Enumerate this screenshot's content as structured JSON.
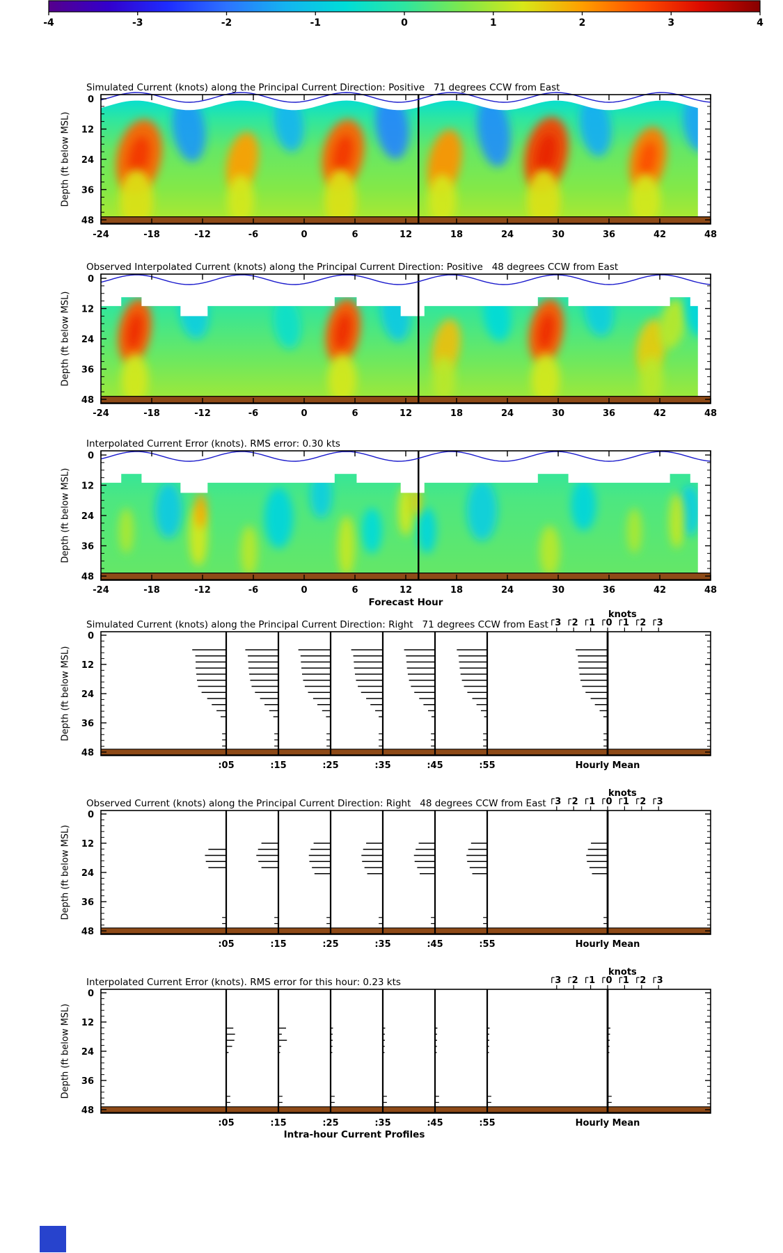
{
  "colorbar": {
    "values": [
      -4,
      -3,
      -2,
      -1,
      0,
      1,
      2,
      3,
      4
    ],
    "tick_labels": [
      "-4",
      "-3",
      "-2",
      "-1",
      "0",
      "1",
      "2",
      "3",
      "4"
    ],
    "gradient": [
      "#55008c",
      "#3300cc",
      "#1e2cff",
      "#2d73ff",
      "#14b4f0",
      "#00ddd8",
      "#2ee6a0",
      "#80e84a",
      "#d8e818",
      "#ff9e00",
      "#ff4e00",
      "#dc0a00",
      "#870000"
    ]
  },
  "misc": {
    "seabed_color": "#8e4a17",
    "tide_color": "#1a1acc",
    "blue_square_color": "#2743cd"
  },
  "knots_scale": {
    "label": "knots",
    "values": [
      -3,
      -2,
      -1,
      0,
      1,
      2,
      3
    ],
    "tick_labels": [
      "3",
      "2",
      "1",
      "0",
      "1",
      "2",
      "3"
    ]
  },
  "profile_axis": {
    "labels": [
      ":05",
      ":15",
      ":25",
      ":35",
      ":45",
      ":55"
    ],
    "mean_label": "Hourly Mean"
  },
  "panels": [
    {
      "key": "sim_heatmap",
      "title": "Simulated Current (knots) along the Principal Current Direction: Positive   71 degrees CCW from East",
      "ylabel": "Depth (ft below MSL)",
      "yticks": [
        0,
        12,
        24,
        36,
        48
      ],
      "xticks": [
        -24,
        -18,
        -12,
        -6,
        0,
        6,
        12,
        18,
        24,
        30,
        36,
        42,
        48
      ],
      "xlabel": ""
    },
    {
      "key": "obs_heatmap",
      "title": "Observed Interpolated Current (knots) along the Principal Current Direction: Positive   48 degrees CCW from East",
      "ylabel": "Depth (ft below MSL)",
      "yticks": [
        0,
        12,
        24,
        36,
        48
      ],
      "xticks": [
        -24,
        -18,
        -12,
        -6,
        0,
        6,
        12,
        18,
        24,
        30,
        36,
        42,
        48
      ],
      "xlabel": ""
    },
    {
      "key": "err_heatmap",
      "title": "Interpolated Current Error (knots). RMS error: 0.30 kts",
      "ylabel": "Depth (ft below MSL)",
      "yticks": [
        0,
        12,
        24,
        36,
        48
      ],
      "xticks": [
        -24,
        -18,
        -12,
        -6,
        0,
        6,
        12,
        18,
        24,
        30,
        36,
        42,
        48
      ],
      "xlabel": "Forecast Hour",
      "rms_kts": 0.3
    },
    {
      "key": "sim_profiles",
      "title": "Simulated Current (knots) along the Principal Current Direction: Right   71 degrees CCW from East",
      "ylabel": "Depth (ft below MSL)",
      "yticks": [
        0,
        12,
        24,
        36,
        48
      ],
      "xlabel": ""
    },
    {
      "key": "obs_profiles",
      "title": "Observed Current (knots) along the Principal Current Direction: Right   48 degrees CCW from East",
      "ylabel": "Depth (ft below MSL)",
      "yticks": [
        0,
        12,
        24,
        36,
        48
      ],
      "xlabel": ""
    },
    {
      "key": "err_profiles",
      "title": "Interpolated Current Error (knots). RMS error for this hour: 0.23 kts",
      "ylabel": "Depth (ft below MSL)",
      "yticks": [
        0,
        12,
        24,
        36,
        48
      ],
      "xlabel": "Intra-hour Current Profiles",
      "rms_kts": 0.23
    }
  ],
  "chart_data": [
    {
      "type": "heatmap",
      "title": "Simulated Current (knots) along the Principal Current Direction: Positive 71 degrees CCW from East",
      "xlabel": "Forecast Hour",
      "ylabel": "Depth (ft below MSL)",
      "x_range": [
        -24,
        48
      ],
      "y_range": [
        0,
        48
      ],
      "value_range": [
        -4,
        4
      ],
      "divider_hour": 13.5,
      "tide": {
        "period_hours": 12.4,
        "peak_hour": 5
      },
      "surface_wave": {
        "mean_depth_ft": 2.6,
        "amplitude_ft": 1.9
      },
      "data_end_hour": 46.5,
      "background": [
        [
          0,
          -0.6
        ],
        [
          8,
          0.0
        ],
        [
          20,
          0.45
        ],
        [
          36,
          0.7
        ],
        [
          48,
          1.0
        ]
      ],
      "blobs": [
        [
          -19.5,
          23,
          2.5,
          2.6,
          15,
          12
        ],
        [
          -7.3,
          25,
          2.0,
          1.8,
          12,
          12
        ],
        [
          4.6,
          22,
          2.5,
          2.4,
          14,
          12
        ],
        [
          16.6,
          25,
          2.1,
          1.9,
          13,
          12
        ],
        [
          28.6,
          22,
          2.8,
          2.5,
          15,
          12
        ],
        [
          40.6,
          24,
          2.3,
          2.1,
          13,
          12
        ],
        [
          -19.8,
          40,
          1.4,
          2.0,
          12,
          0
        ],
        [
          -7.5,
          40,
          1.3,
          1.6,
          10,
          0
        ],
        [
          4.3,
          40,
          1.4,
          1.9,
          12,
          0
        ],
        [
          16.3,
          40,
          1.3,
          1.7,
          10,
          0
        ],
        [
          28.3,
          40,
          1.4,
          2.0,
          12,
          0
        ],
        [
          40.3,
          40,
          1.3,
          1.8,
          10,
          0
        ],
        [
          -13.6,
          12,
          -1.6,
          1.9,
          13,
          -8
        ],
        [
          -1.8,
          10,
          -1.3,
          1.7,
          11,
          -8
        ],
        [
          10.4,
          11,
          -1.8,
          1.9,
          13,
          -8
        ],
        [
          22.4,
          13,
          -1.7,
          1.9,
          14,
          -8
        ],
        [
          34.4,
          11,
          -1.4,
          1.8,
          12,
          -8
        ],
        [
          46.4,
          10,
          -1.5,
          1.6,
          11,
          -8
        ]
      ]
    },
    {
      "type": "heatmap",
      "title": "Observed Interpolated Current (knots) along the Principal Current Direction: Positive 48 degrees CCW from East",
      "xlabel": "Forecast Hour",
      "ylabel": "Depth (ft below MSL)",
      "x_range": [
        -24,
        48
      ],
      "y_range": [
        0,
        48
      ],
      "value_range": [
        -4,
        4
      ],
      "divider_hour": 13.5,
      "tide": {
        "period_hours": 12.4,
        "peak_hour": 5
      },
      "steps": {
        "base_depth_ft": 11,
        "raised_depth_ft": 7.5,
        "raised_spans": [
          [
            -21.6,
            -19.2
          ],
          [
            3.6,
            6.2
          ],
          [
            27.6,
            31.2
          ],
          [
            43.2,
            45.6
          ]
        ],
        "notch_depth_ft": 15,
        "notch_spans": [
          [
            -14.6,
            -11.4
          ],
          [
            11.4,
            14.2
          ]
        ]
      },
      "data_end_hour": 46.5,
      "background": [
        [
          0,
          -0.4
        ],
        [
          14,
          0.1
        ],
        [
          32,
          0.5
        ],
        [
          48,
          0.9
        ]
      ],
      "blobs": [
        [
          -20,
          21,
          2.6,
          1.9,
          13,
          10
        ],
        [
          4.6,
          21,
          2.6,
          2.0,
          13,
          10
        ],
        [
          16.8,
          27,
          1.7,
          1.6,
          11,
          10
        ],
        [
          28.6,
          21,
          2.6,
          2.0,
          13,
          10
        ],
        [
          41,
          27,
          1.6,
          1.7,
          11,
          10
        ],
        [
          43.5,
          18,
          1.1,
          1.5,
          10,
          10
        ],
        [
          -20,
          40,
          1.3,
          1.6,
          10,
          0
        ],
        [
          4.5,
          40,
          1.3,
          1.7,
          10,
          0
        ],
        [
          28.5,
          40,
          1.3,
          1.7,
          10,
          0
        ],
        [
          16.5,
          40,
          1.1,
          1.4,
          9,
          0
        ],
        [
          41,
          40,
          1.1,
          1.4,
          9,
          0
        ],
        [
          -13,
          14,
          -0.9,
          1.7,
          10,
          -8
        ],
        [
          -2,
          18,
          -0.5,
          1.6,
          10,
          -8
        ],
        [
          10.8,
          14,
          -1.0,
          1.7,
          11,
          -8
        ],
        [
          22.8,
          15,
          -0.7,
          1.6,
          10,
          -8
        ],
        [
          34.8,
          13,
          -0.9,
          1.7,
          10,
          -8
        ],
        [
          46.5,
          14,
          -0.8,
          1.4,
          9,
          -8
        ]
      ]
    },
    {
      "type": "heatmap",
      "title": "Interpolated Current Error (knots). RMS error: 0.30 kts",
      "rms_kts": 0.3,
      "xlabel": "Forecast Hour",
      "ylabel": "Depth (ft below MSL)",
      "x_range": [
        -24,
        48
      ],
      "y_range": [
        0,
        48
      ],
      "value_range": [
        -4,
        4
      ],
      "divider_hour": 13.5,
      "tide": {
        "period_hours": 12.4,
        "peak_hour": 5
      },
      "steps": {
        "base_depth_ft": 11,
        "raised_depth_ft": 7.5,
        "raised_spans": [
          [
            -21.6,
            -19.2
          ],
          [
            3.6,
            6.2
          ],
          [
            27.6,
            31.2
          ],
          [
            43.2,
            45.6
          ]
        ],
        "notch_depth_ft": 15,
        "notch_spans": [
          [
            -14.6,
            -11.4
          ],
          [
            11.4,
            14.2
          ]
        ]
      },
      "data_end_hour": 46.5,
      "background": [
        [
          0,
          -0.1
        ],
        [
          18,
          0.25
        ],
        [
          48,
          0.45
        ]
      ],
      "blobs": [
        [
          -16,
          22,
          -1.0,
          1.6,
          11,
          0
        ],
        [
          -3,
          25,
          -0.8,
          1.7,
          12,
          0
        ],
        [
          2,
          16,
          -0.9,
          1.3,
          9,
          0
        ],
        [
          8,
          30,
          -0.7,
          1.2,
          9,
          0
        ],
        [
          21,
          22,
          -0.9,
          1.8,
          12,
          0
        ],
        [
          33,
          20,
          -0.8,
          1.5,
          10,
          0
        ],
        [
          45.5,
          22,
          -0.9,
          1.4,
          10,
          0
        ],
        [
          14.5,
          30,
          -0.8,
          1.1,
          9,
          0
        ],
        [
          -12.5,
          32,
          1.3,
          1.1,
          12,
          0
        ],
        [
          -6.5,
          38,
          1.1,
          1.0,
          10,
          0
        ],
        [
          5,
          36,
          1.2,
          1.0,
          12,
          0
        ],
        [
          12,
          22,
          1.3,
          0.9,
          10,
          0
        ],
        [
          29,
          38,
          1.1,
          1.2,
          10,
          0
        ],
        [
          39,
          30,
          1.0,
          0.9,
          9,
          0
        ],
        [
          44,
          26,
          1.2,
          0.9,
          11,
          0
        ],
        [
          -21,
          30,
          1.0,
          0.9,
          9,
          0
        ],
        [
          -12.2,
          22,
          1.9,
          0.7,
          7,
          0
        ],
        [
          13.2,
          18,
          1.6,
          0.6,
          6,
          0
        ]
      ]
    },
    {
      "type": "bar",
      "title": "Simulated Current (knots) along the Principal Current Direction: Right 71 degrees CCW from East",
      "ylabel": "Depth (ft below MSL)",
      "knots_scale_ticks": [
        3,
        2,
        1,
        0,
        1,
        2,
        3
      ],
      "direction": -1,
      "depth_step_ft": 2.5,
      "profiles": [
        {
          "label": ":05",
          "start_depth_ft": 6,
          "values": [
            2.0,
            1.82,
            1.8,
            1.8,
            1.76,
            1.72,
            1.66,
            1.45,
            1.12,
            0.85,
            0.57,
            0.33
          ]
        },
        {
          "label": ":15",
          "start_depth_ft": 6,
          "values": [
            1.95,
            1.8,
            1.78,
            1.76,
            1.72,
            1.66,
            1.58,
            1.38,
            1.08,
            0.82,
            0.54,
            0.3
          ]
        },
        {
          "label": ":25",
          "start_depth_ft": 6,
          "values": [
            1.9,
            1.77,
            1.75,
            1.72,
            1.68,
            1.62,
            1.52,
            1.33,
            1.03,
            0.78,
            0.5,
            0.27
          ]
        },
        {
          "label": ":35",
          "start_depth_ft": 6,
          "values": [
            1.86,
            1.74,
            1.71,
            1.69,
            1.64,
            1.58,
            1.47,
            1.28,
            0.98,
            0.73,
            0.45,
            0.24
          ]
        },
        {
          "label": ":45",
          "start_depth_ft": 6,
          "values": [
            1.82,
            1.71,
            1.68,
            1.65,
            1.6,
            1.53,
            1.42,
            1.22,
            0.93,
            0.68,
            0.41,
            0.21
          ]
        },
        {
          "label": ":55",
          "start_depth_ft": 6,
          "values": [
            1.79,
            1.69,
            1.66,
            1.62,
            1.57,
            1.49,
            1.37,
            1.17,
            0.88,
            0.63,
            0.37,
            0.18
          ]
        },
        {
          "label": "Hourly Mean",
          "start_depth_ft": 6,
          "values": [
            1.88,
            1.76,
            1.73,
            1.71,
            1.66,
            1.6,
            1.5,
            1.3,
            1.0,
            0.75,
            0.47,
            0.25
          ]
        }
      ],
      "bottom_ticks": {
        "depths_ft": [
          40.5,
          43,
          45.5
        ],
        "value": 0.08
      }
    },
    {
      "type": "bar",
      "title": "Observed Current (knots) along the Principal Current Direction: Right 48 degrees CCW from East",
      "ylabel": "Depth (ft below MSL)",
      "knots_scale_ticks": [
        3,
        2,
        1,
        0,
        1,
        2,
        3
      ],
      "direction": -1,
      "depth_step_ft": 2.5,
      "profiles": [
        {
          "label": ":05",
          "start_depth_ft": 14.5,
          "values": [
            1.05,
            1.25,
            1.2,
            1.05
          ]
        },
        {
          "label": ":15",
          "start_depth_ft": 12,
          "values": [
            1.0,
            1.2,
            1.3,
            1.18,
            1.0
          ]
        },
        {
          "label": ":25",
          "start_depth_ft": 12,
          "values": [
            1.0,
            1.18,
            1.28,
            1.25,
            1.1,
            0.95
          ]
        },
        {
          "label": ":35",
          "start_depth_ft": 12,
          "values": [
            0.98,
            1.16,
            1.26,
            1.22,
            1.08,
            0.92
          ]
        },
        {
          "label": ":45",
          "start_depth_ft": 12,
          "values": [
            0.96,
            1.14,
            1.24,
            1.2,
            1.05,
            0.9
          ]
        },
        {
          "label": ":55",
          "start_depth_ft": 12,
          "values": [
            0.95,
            1.12,
            1.22,
            1.18,
            1.03,
            0.88
          ]
        },
        {
          "label": "Hourly Mean",
          "start_depth_ft": 12,
          "values": [
            0.98,
            1.16,
            1.26,
            1.22,
            1.07,
            0.92
          ]
        }
      ],
      "bottom_ticks": {
        "depths_ft": [
          42.5,
          45
        ],
        "value": 0.08
      }
    },
    {
      "type": "bar",
      "title": "Interpolated Current Error (knots). RMS error for this hour: 0.23 kts",
      "rms_kts": 0.23,
      "ylabel": "Depth (ft below MSL)",
      "knots_scale_ticks": [
        3,
        2,
        1,
        0,
        1,
        2,
        3
      ],
      "direction": 1,
      "depth_step_ft": 2.5,
      "profiles": [
        {
          "label": ":05",
          "start_depth_ft": 14.5,
          "values": [
            0.42,
            0.52,
            0.48,
            0.35,
            0.14
          ]
        },
        {
          "label": ":15",
          "start_depth_ft": 14.5,
          "values": [
            0.45,
            0.2,
            0.5,
            0.16,
            0.1
          ]
        },
        {
          "label": ":25",
          "start_depth_ft": 14.5,
          "values": [
            0.14,
            0.12,
            0.12,
            0.11,
            0.1
          ]
        },
        {
          "label": ":35",
          "start_depth_ft": 14.5,
          "values": [
            0.14,
            0.12,
            0.12,
            0.11,
            0.1
          ]
        },
        {
          "label": ":45",
          "start_depth_ft": 14.5,
          "values": [
            0.14,
            0.12,
            0.12,
            0.11,
            0.1
          ]
        },
        {
          "label": ":55",
          "start_depth_ft": 14.5,
          "values": [
            0.14,
            0.12,
            0.12,
            0.11,
            0.1
          ]
        },
        {
          "label": "Hourly Mean",
          "start_depth_ft": 14.5,
          "values": [
            0.16,
            0.14,
            0.12,
            0.11,
            0.1
          ]
        }
      ],
      "bottom_ticks": {
        "depths_ft": [
          42.5,
          45
        ],
        "value": 0.08
      }
    }
  ]
}
